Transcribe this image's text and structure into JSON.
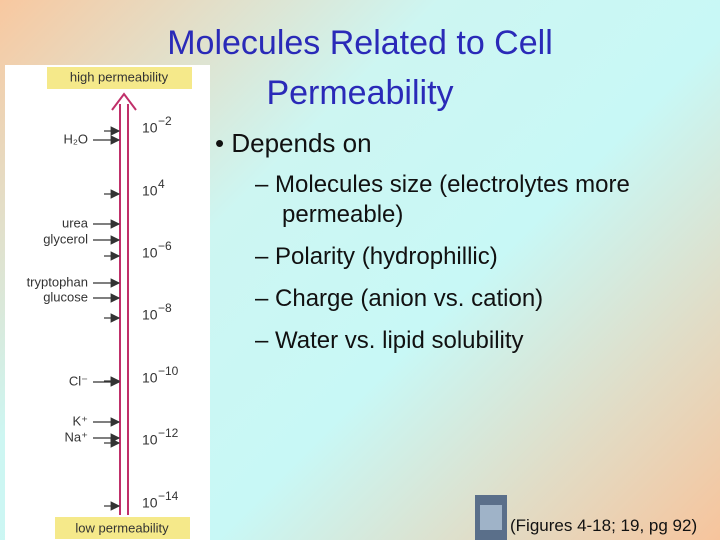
{
  "title": [
    "Molecules Related to Cell",
    "Permeability"
  ],
  "bullet": "Depends on",
  "sub_bullets": [
    "Molecules size (electrolytes more permeable)",
    "Polarity (hydrophillic)",
    "Charge (anion vs. cation)",
    "Water vs. lipid solubility"
  ],
  "figure": {
    "top_label": "high permeability",
    "bottom_label": "low permeability",
    "scale": [
      {
        "base": "10",
        "exponent": "−2"
      },
      {
        "base": "10",
        "exponent": "4"
      },
      {
        "base": "10",
        "exponent": "−6"
      },
      {
        "base": "10",
        "exponent": "−8"
      },
      {
        "base": "10",
        "exponent": "−10"
      },
      {
        "base": "10",
        "exponent": "−12"
      },
      {
        "base": "10",
        "exponent": "−14"
      }
    ],
    "molecules": [
      "H₂O",
      "urea",
      "glycerol",
      "tryptophan",
      "glucose",
      "Cl⁻",
      "K⁺",
      "Na⁺"
    ]
  },
  "citation": "(Figures 4-18; 19, pg 92)"
}
